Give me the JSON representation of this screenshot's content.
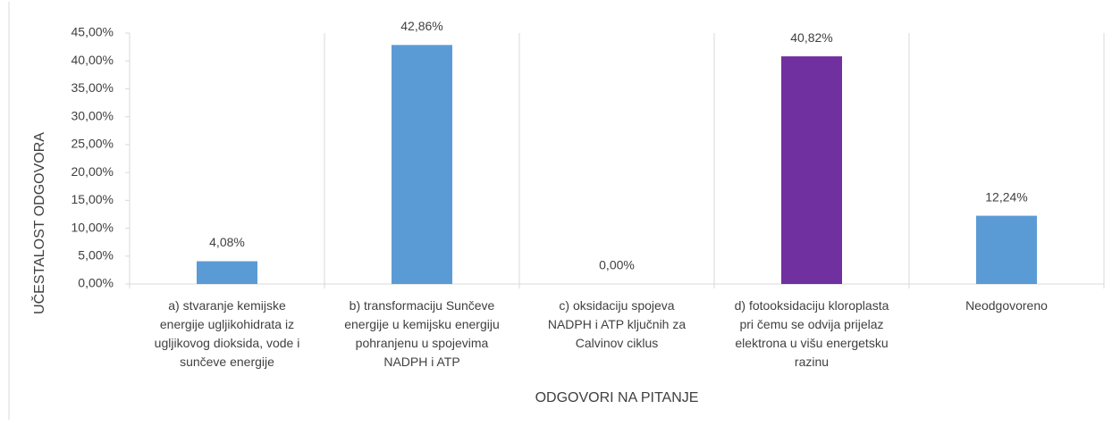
{
  "chart_data": {
    "type": "bar",
    "x_label": "ODGOVORI NA PITANJE",
    "y_label": "UČESTALOST ODGOVORA",
    "categories": [
      "a) stvaranje kemijske energije ugljikohidrata iz ugljikovog dioksida, vode i sunčeve energije",
      "b) transformaciju Sunčeve energije u kemijsku energiju pohranjenu u spojevima NADPH i ATP",
      "c) oksidaciju spojeva NADPH i ATP ključnih za Calvinov ciklus",
      "d) fotooksidaciju kloroplasta pri čemu se odvija prijelaz elektrona u višu energetsku razinu",
      "Neodgovoreno"
    ],
    "values": [
      4.08,
      42.86,
      0,
      40.82,
      12.24
    ],
    "value_labels": [
      "4,08%",
      "42,86%",
      "0,00%",
      "40,82%",
      "12,24%"
    ],
    "colors": [
      "#5b9bd5",
      "#5b9bd5",
      "#5b9bd5",
      "#7030a0",
      "#5b9bd5"
    ],
    "ylim": [
      0,
      45
    ],
    "yticks": [
      {
        "value": 0,
        "label": "0,00%"
      },
      {
        "value": 5,
        "label": "5,00%"
      },
      {
        "value": 10,
        "label": "10,00%"
      },
      {
        "value": 15,
        "label": "15,00%"
      },
      {
        "value": 20,
        "label": "20,00%"
      },
      {
        "value": 25,
        "label": "25,00%"
      },
      {
        "value": 30,
        "label": "30,00%"
      },
      {
        "value": 35,
        "label": "35,00%"
      },
      {
        "value": 40,
        "label": "40,00%"
      },
      {
        "value": 45,
        "label": "45,00%"
      }
    ]
  }
}
